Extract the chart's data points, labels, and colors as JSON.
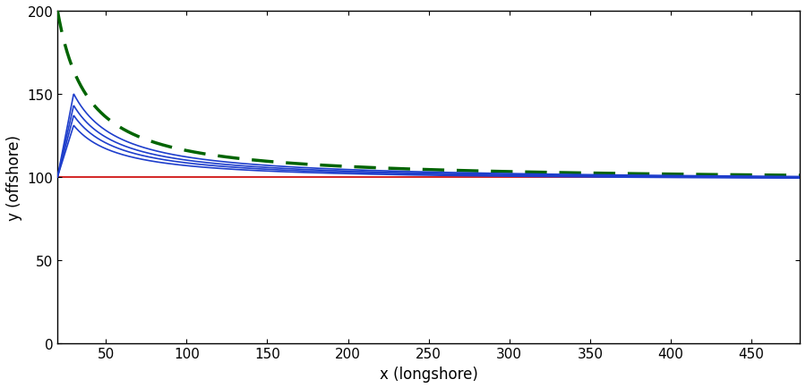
{
  "title": "",
  "xlabel": "x (longshore)",
  "ylabel": "y (offshore)",
  "xlim": [
    20,
    480
  ],
  "ylim": [
    0,
    200
  ],
  "xticks": [
    50,
    100,
    150,
    200,
    250,
    300,
    350,
    400,
    450
  ],
  "yticks": [
    0,
    50,
    100,
    150,
    200
  ],
  "x_plot_start": 20,
  "x_end": 480,
  "red_line_y": 100,
  "green_color": "#006400",
  "blue_color": "#1E3ECC",
  "red_color": "#CC0000",
  "background_color": "#ffffff",
  "figsize": [
    9.0,
    4.35
  ],
  "dpi": 100,
  "green_x0": 20,
  "green_y_at_x0": 200,
  "green_baseline": 97.5,
  "green_n": 1.07,
  "blue_peaks": [
    150,
    143,
    137,
    131
  ],
  "blue_peak_x": 30,
  "blue_baseline": 97.5,
  "blue_n": 1.07
}
